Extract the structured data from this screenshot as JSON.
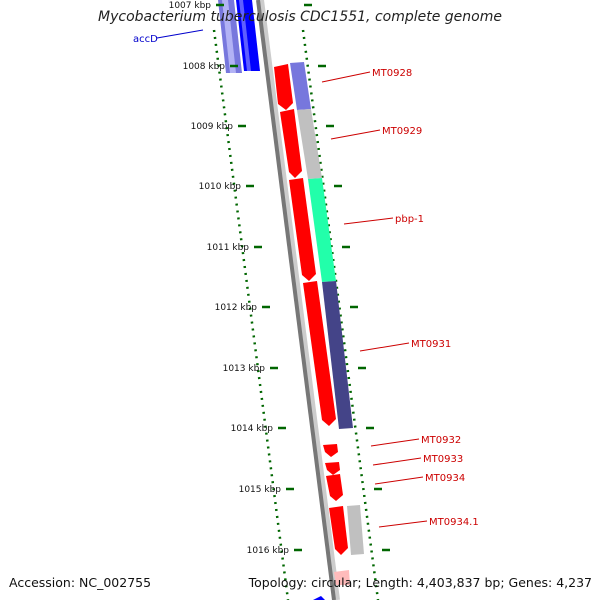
{
  "header": {
    "title": "Mycobacterium tuberculosis CDC1551, complete genome"
  },
  "footer": {
    "accession": "Accession: NC_002755",
    "summary": "Topology: circular; Length: 4,403,837 bp; Genes: 4,237"
  },
  "colors": {
    "red_gene": "#ff0000",
    "blue_gene": "#0000ff",
    "light_blue_gene": "#7777dd",
    "gray_gene": "#c0c0c0",
    "green_gene": "#22ffaa",
    "dark_blue_gene": "#444488",
    "backbone": "#777777",
    "tick": "#006600",
    "gene_label_red": "#cc0000",
    "gene_label_blue": "#0000cc"
  },
  "scale_labels": [
    "1007 kbp",
    "1008 kbp",
    "1009 kbp",
    "1010 kbp",
    "1011 kbp",
    "1012 kbp",
    "1013 kbp",
    "1014 kbp",
    "1015 kbp",
    "1016 kbp"
  ],
  "gene_labels": [
    {
      "name": "accD",
      "color": "blue"
    },
    {
      "name": "MT0928",
      "color": "red"
    },
    {
      "name": "MT0929",
      "color": "red"
    },
    {
      "name": "pbp-1",
      "color": "red"
    },
    {
      "name": "MT0931",
      "color": "red"
    },
    {
      "name": "MT0932",
      "color": "red"
    },
    {
      "name": "MT0933",
      "color": "red"
    },
    {
      "name": "MT0934",
      "color": "red"
    },
    {
      "name": "MT0934.1",
      "color": "red"
    }
  ]
}
